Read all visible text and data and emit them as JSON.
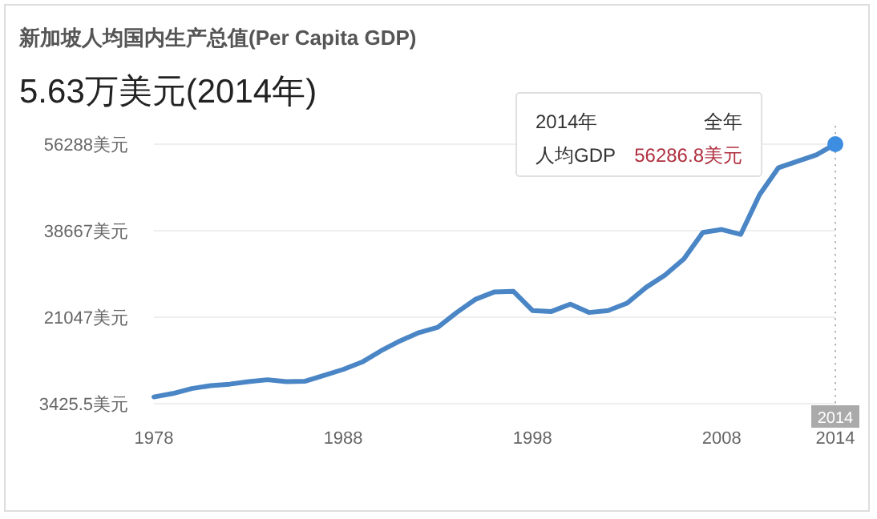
{
  "chart_data": {
    "type": "line",
    "title": "新加坡人均国内生产总值(Per Capita GDP)",
    "subtitle": "5.63万美元(2014年)",
    "x": [
      1978,
      1979,
      1980,
      1981,
      1982,
      1983,
      1984,
      1985,
      1986,
      1987,
      1988,
      1989,
      1990,
      1991,
      1992,
      1993,
      1994,
      1995,
      1996,
      1997,
      1998,
      1999,
      2000,
      2001,
      2002,
      2003,
      2004,
      2005,
      2006,
      2007,
      2008,
      2009,
      2010,
      2011,
      2012,
      2013,
      2014
    ],
    "series": [
      {
        "color": "#4a86c5",
        "values": [
          4800,
          5500,
          6500,
          7100,
          7400,
          7900,
          8300,
          7900,
          8000,
          9200,
          10400,
          11900,
          14200,
          16200,
          17900,
          19000,
          22000,
          24700,
          26200,
          26300,
          22400,
          22200,
          23700,
          22000,
          22400,
          23900,
          27100,
          29600,
          32900,
          38300,
          38900,
          37900,
          46000,
          51500,
          52800,
          54100,
          56286.8
        ]
      }
    ],
    "xlim": [
      1978,
      2014
    ],
    "xticks": [
      1978,
      1988,
      1998,
      2008,
      2014
    ],
    "ylim": [
      3425.5,
      60000
    ],
    "yticks": [
      {
        "value": 3425.5,
        "label": "3425.5美元"
      },
      {
        "value": 21047,
        "label": "21047美元"
      },
      {
        "value": 38667,
        "label": "38667美元"
      },
      {
        "value": 56288,
        "label": "56288美元"
      }
    ],
    "grid": "y",
    "marker": "none",
    "line_style": "solid",
    "ref_lines": [
      {
        "axis": "x",
        "value": 2014,
        "label": "2014",
        "color": "#aaaaaa",
        "line_style": "dotted"
      }
    ],
    "annotations": [
      "2014年",
      "全年",
      "人均GDP",
      "56286.8美元"
    ]
  }
}
